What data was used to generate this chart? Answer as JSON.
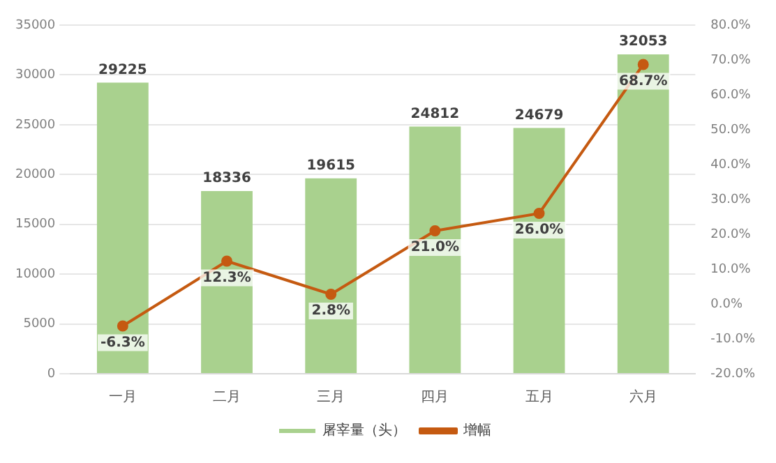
{
  "chart_data": {
    "type": "bar",
    "categories": [
      "一月",
      "二月",
      "三月",
      "四月",
      "五月",
      "六月"
    ],
    "series": [
      {
        "name": "屠宰量（头）",
        "color": "#a9d18e",
        "values": [
          29225,
          18336,
          19615,
          24812,
          24679,
          32053
        ],
        "value_labels": [
          "29225",
          "18336",
          "19615",
          "24812",
          "24679",
          "32053"
        ]
      },
      {
        "name": "增幅",
        "type": "line",
        "axis": "y2",
        "color": "#c55a11",
        "values": [
          -6.3,
          12.3,
          2.8,
          21.0,
          26.0,
          68.7
        ],
        "value_labels": [
          "-6.3%",
          "12.3%",
          "2.8%",
          "21.0%",
          "26.0%",
          "68.7%"
        ],
        "marker": "circle"
      }
    ],
    "ylim": [
      0,
      35000
    ],
    "yticks": [
      0,
      5000,
      10000,
      15000,
      20000,
      25000,
      30000,
      35000
    ],
    "y2lim": [
      -20,
      80
    ],
    "y2ticks": [
      {
        "value": -20,
        "label": "-20.0%"
      },
      {
        "value": -10,
        "label": "-10.0%"
      },
      {
        "value": 0,
        "label": "0.0%"
      },
      {
        "value": 10,
        "label": "10.0%"
      },
      {
        "value": 20,
        "label": "20.0%"
      },
      {
        "value": 30,
        "label": "30.0%"
      },
      {
        "value": 40,
        "label": "40.0%"
      },
      {
        "value": 50,
        "label": "50.0%"
      },
      {
        "value": 60,
        "label": "60.0%"
      },
      {
        "value": 70,
        "label": "70.0%"
      },
      {
        "value": 80,
        "label": "80.0%"
      }
    ],
    "grid": "y",
    "legend": "bottom"
  }
}
